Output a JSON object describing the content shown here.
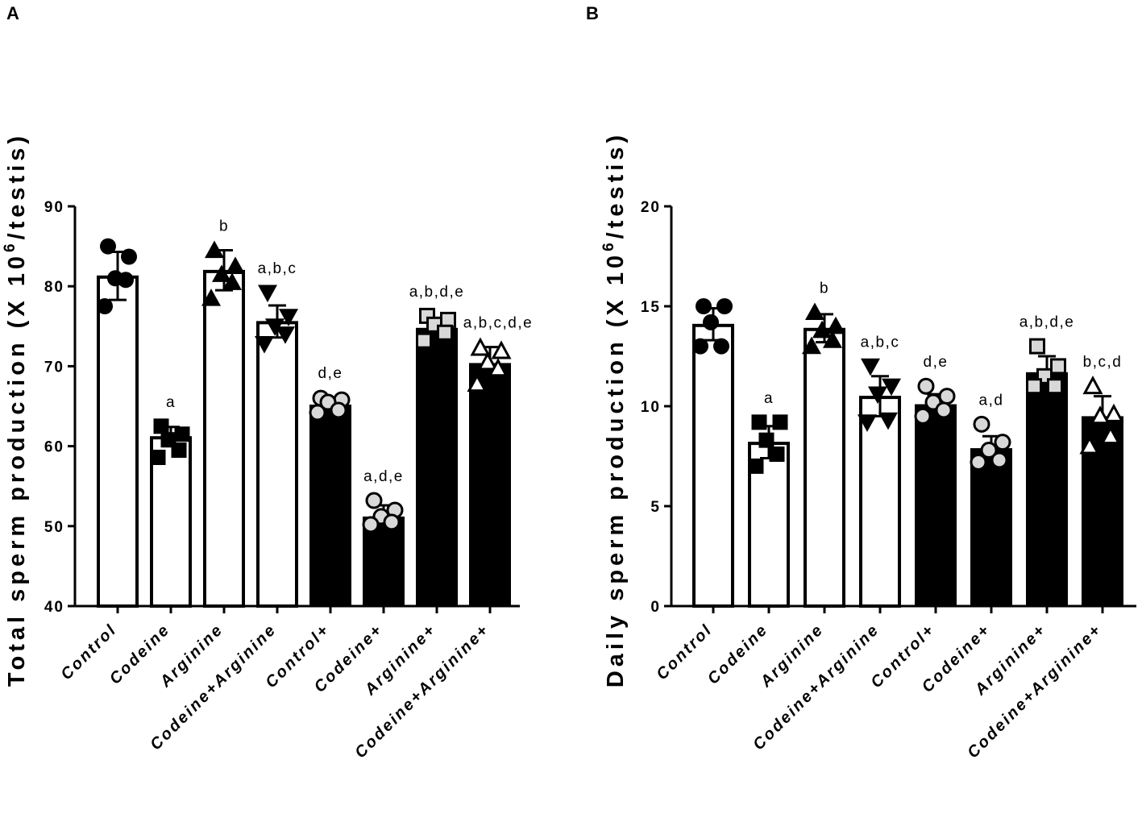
{
  "chart_data": [
    {
      "panel": "A",
      "type": "bar",
      "ylabel": "Total sperm production (X 10",
      "ylabel_exponent": "6",
      "ylabel_suffix": "/testis)",
      "ylim": [
        40,
        90
      ],
      "yticks": [
        40,
        50,
        60,
        70,
        80,
        90
      ],
      "categories": [
        "Control",
        "Codeine",
        "Arginine",
        "Codeine+Arginine",
        "Control+",
        "Codeine+",
        "Arginine+",
        "Codeine+Arginine+"
      ],
      "bar_fill": [
        "white",
        "white",
        "white",
        "white",
        "black",
        "black",
        "black",
        "black"
      ],
      "marker": [
        "circle",
        "square",
        "triangle-up",
        "triangle-down",
        "circle-gray",
        "circle-gray",
        "square-gray",
        "triangle-up-open"
      ],
      "values": [
        81.3,
        61.2,
        82.0,
        75.6,
        65.2,
        51.2,
        74.8,
        70.4
      ],
      "error": [
        3.0,
        1.2,
        2.5,
        2.0,
        0.9,
        1.4,
        1.2,
        2.0
      ],
      "points": [
        [
          85,
          83.7,
          81,
          80.8,
          77.5
        ],
        [
          62.5,
          61.5,
          60.8,
          59.5,
          58.6
        ],
        [
          84.5,
          82.5,
          81.5,
          80.5,
          78.5
        ],
        [
          79.2,
          76.2,
          75,
          74,
          72.8
        ],
        [
          66,
          65.8,
          65.5,
          64.5,
          64.2
        ],
        [
          53.2,
          52,
          51.2,
          50.5,
          50.2
        ],
        [
          76.3,
          75.8,
          75.2,
          74.2,
          73.2
        ],
        [
          72.3,
          71.9,
          70.5,
          69.7,
          67.8
        ]
      ],
      "significance": [
        "",
        "a",
        "b",
        "a,b,c",
        "d,e",
        "a,d,e",
        "a,b,d,e",
        "a,b,c,d,e"
      ]
    },
    {
      "panel": "B",
      "type": "bar",
      "ylabel": "Daily sperm production (X 10",
      "ylabel_exponent": "6",
      "ylabel_suffix": "/testis)",
      "ylim": [
        0,
        20
      ],
      "yticks": [
        0,
        5,
        10,
        15,
        20
      ],
      "categories": [
        "Control",
        "Codeine",
        "Arginine",
        "Codeine+Arginine",
        "Control+",
        "Codeine+",
        "Arginine+",
        "Codeine+Arginine+"
      ],
      "bar_fill": [
        "white",
        "white",
        "white",
        "white",
        "black",
        "black",
        "black",
        "black"
      ],
      "marker": [
        "circle",
        "square",
        "triangle-up",
        "triangle-down",
        "circle-gray",
        "circle-gray",
        "square-gray",
        "triangle-up-open"
      ],
      "values": [
        14.1,
        8.2,
        13.9,
        10.5,
        10.1,
        7.9,
        11.7,
        9.5
      ],
      "error": [
        0.8,
        0.8,
        0.7,
        1.0,
        0.5,
        0.6,
        0.8,
        1.0
      ],
      "points": [
        [
          15.0,
          15.0,
          14.2,
          13.0,
          13.0
        ],
        [
          9.2,
          9.2,
          8.3,
          7.6,
          7.0
        ],
        [
          14.7,
          14.0,
          13.8,
          13.3,
          13.0
        ],
        [
          12.0,
          11.0,
          10.6,
          9.3,
          9.2
        ],
        [
          11.0,
          10.5,
          10.2,
          9.8,
          9.5
        ],
        [
          9.1,
          8.2,
          7.8,
          7.3,
          7.2
        ],
        [
          13.0,
          12.0,
          11.5,
          11.0,
          11.0
        ],
        [
          11.0,
          9.6,
          9.5,
          8.5,
          8.0
        ]
      ],
      "significance": [
        "",
        "a",
        "b",
        "a,b,c",
        "d,e",
        "a,d",
        "a,b,d,e",
        "b,c,d"
      ]
    }
  ]
}
